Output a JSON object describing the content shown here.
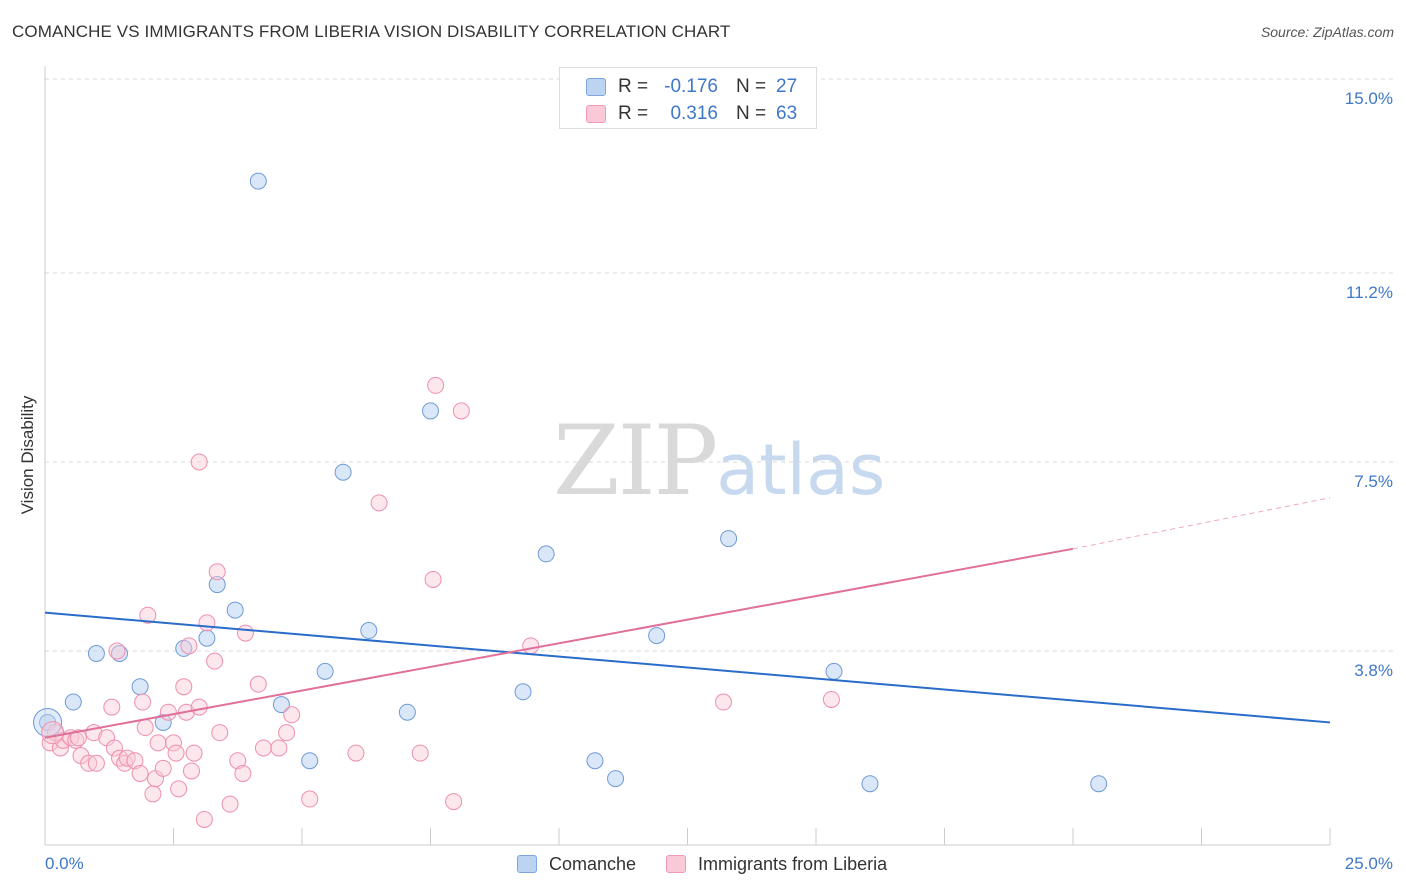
{
  "header": {
    "title": "COMANCHE VS IMMIGRANTS FROM LIBERIA VISION DISABILITY CORRELATION CHART",
    "source": "Source: ZipAtlas.com"
  },
  "legend": {
    "series1": {
      "r_label": "R =",
      "r_value": "-0.176",
      "n_label": "N =",
      "n_value": "27"
    },
    "series2": {
      "r_label": "R =",
      "r_value": "0.316",
      "n_label": "N =",
      "n_value": "63"
    }
  },
  "watermark": {
    "part1": "ZIP",
    "part2": "atlas"
  },
  "chart_data": {
    "type": "scatter",
    "title": "COMANCHE VS IMMIGRANTS FROM LIBERIA VISION DISABILITY CORRELATION CHART",
    "xlabel": "",
    "ylabel": "Vision Disability",
    "xlim": [
      0,
      25
    ],
    "ylim": [
      0,
      15
    ],
    "x_tick_labels": [
      "0.0%",
      "25.0%"
    ],
    "y_ticks": [
      3.8,
      7.5,
      11.2,
      15.0
    ],
    "y_tick_labels": [
      "3.8%",
      "7.5%",
      "11.2%",
      "15.0%"
    ],
    "grid": true,
    "colors": {
      "comanche": "#5b8fd6",
      "liberia": "#ee88a6",
      "comanche_line": "#2a6cc9",
      "liberia_line": "#e0709a"
    },
    "series": [
      {
        "name": "Comanche",
        "points": [
          [
            0.05,
            2.4
          ],
          [
            0.55,
            2.8
          ],
          [
            1.0,
            3.75
          ],
          [
            1.45,
            3.75
          ],
          [
            1.85,
            3.1
          ],
          [
            2.3,
            2.4
          ],
          [
            2.7,
            3.85
          ],
          [
            3.15,
            4.05
          ],
          [
            3.35,
            5.1
          ],
          [
            3.7,
            4.6
          ],
          [
            4.15,
            13.0
          ],
          [
            4.6,
            2.75
          ],
          [
            5.15,
            1.65
          ],
          [
            5.45,
            3.4
          ],
          [
            5.8,
            7.3
          ],
          [
            6.3,
            4.2
          ],
          [
            7.05,
            2.6
          ],
          [
            7.5,
            8.5
          ],
          [
            9.3,
            3.0
          ],
          [
            9.75,
            5.7
          ],
          [
            10.7,
            1.65
          ],
          [
            11.1,
            1.3
          ],
          [
            11.9,
            4.1
          ],
          [
            13.3,
            6.0
          ],
          [
            15.35,
            3.4
          ],
          [
            16.05,
            1.2
          ],
          [
            20.5,
            1.2
          ]
        ],
        "trend": {
          "x": [
            0,
            25
          ],
          "y": [
            4.55,
            2.4
          ]
        }
      },
      {
        "name": "Immigrants from Liberia",
        "points": [
          [
            0.1,
            2.0
          ],
          [
            0.2,
            2.2
          ],
          [
            0.3,
            1.9
          ],
          [
            0.35,
            2.05
          ],
          [
            0.5,
            2.1
          ],
          [
            0.6,
            2.05
          ],
          [
            0.65,
            2.1
          ],
          [
            0.7,
            1.75
          ],
          [
            0.85,
            1.6
          ],
          [
            0.95,
            2.2
          ],
          [
            1.0,
            1.6
          ],
          [
            1.2,
            2.1
          ],
          [
            1.3,
            2.7
          ],
          [
            1.35,
            1.9
          ],
          [
            1.45,
            1.7
          ],
          [
            1.55,
            1.6
          ],
          [
            1.6,
            1.7
          ],
          [
            1.75,
            1.65
          ],
          [
            1.85,
            1.4
          ],
          [
            1.9,
            2.8
          ],
          [
            1.95,
            2.3
          ],
          [
            2.0,
            4.5
          ],
          [
            2.1,
            1.0
          ],
          [
            2.15,
            1.3
          ],
          [
            2.2,
            2.0
          ],
          [
            2.3,
            1.5
          ],
          [
            2.4,
            2.6
          ],
          [
            2.5,
            2.0
          ],
          [
            2.55,
            1.8
          ],
          [
            2.6,
            1.1
          ],
          [
            2.7,
            3.1
          ],
          [
            2.75,
            2.6
          ],
          [
            2.8,
            3.9
          ],
          [
            2.85,
            1.45
          ],
          [
            2.9,
            1.8
          ],
          [
            3.0,
            2.7
          ],
          [
            3.0,
            7.5
          ],
          [
            3.1,
            0.5
          ],
          [
            3.15,
            4.35
          ],
          [
            3.3,
            3.6
          ],
          [
            3.35,
            5.35
          ],
          [
            3.4,
            2.2
          ],
          [
            3.75,
            1.65
          ],
          [
            3.85,
            1.4
          ],
          [
            3.9,
            4.15
          ],
          [
            4.15,
            3.15
          ],
          [
            4.25,
            1.9
          ],
          [
            4.55,
            1.9
          ],
          [
            4.7,
            2.2
          ],
          [
            4.8,
            2.55
          ],
          [
            5.15,
            0.9
          ],
          [
            6.05,
            1.8
          ],
          [
            6.5,
            6.7
          ],
          [
            7.3,
            1.8
          ],
          [
            7.55,
            5.2
          ],
          [
            7.6,
            9.0
          ],
          [
            7.95,
            0.85
          ],
          [
            8.1,
            8.5
          ],
          [
            9.45,
            3.9
          ],
          [
            13.2,
            2.8
          ],
          [
            15.3,
            2.85
          ],
          [
            3.6,
            0.8
          ],
          [
            1.4,
            3.8
          ]
        ],
        "trend": {
          "x": [
            0,
            20
          ],
          "y": [
            2.1,
            5.8
          ]
        },
        "trend_dashed": {
          "x": [
            20,
            25
          ],
          "y": [
            5.8,
            6.8
          ]
        }
      }
    ]
  },
  "bottom_legend": {
    "items": [
      "Comanche",
      "Immigrants from Liberia"
    ]
  }
}
